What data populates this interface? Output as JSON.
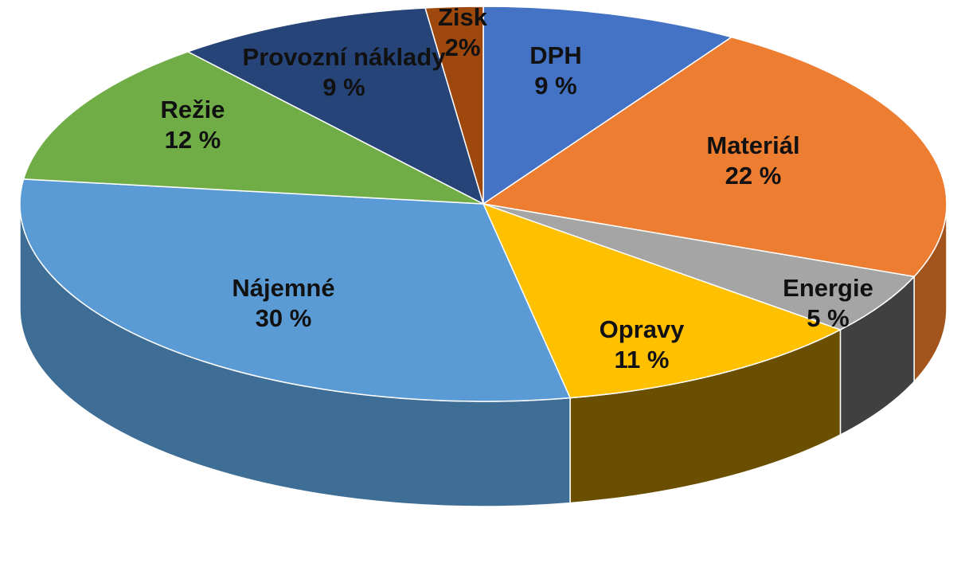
{
  "chart_data": {
    "type": "pie",
    "style": "3d",
    "start_angle_deg": 0,
    "direction": "clockwise",
    "legend": "none",
    "slices": [
      {
        "name": "DPH",
        "value": 9,
        "label": "9 %",
        "color": "#4472c4",
        "side_color": "#2f4f8a"
      },
      {
        "name": "Materiál",
        "value": 22,
        "label": "22 %",
        "color": "#ed7d31",
        "side_color": "#a3531c"
      },
      {
        "name": "Energie",
        "value": 5,
        "label": "5 %",
        "color": "#a5a5a5",
        "side_color": "#404040"
      },
      {
        "name": "Opravy",
        "value": 11,
        "label": "11 %",
        "color": "#ffc000",
        "side_color": "#6b4f00"
      },
      {
        "name": "Nájemné",
        "value": 30,
        "label": "30 %",
        "color": "#5b9bd5",
        "side_color": "#3e6d96"
      },
      {
        "name": "Režie",
        "value": 12,
        "label": "12 %",
        "color": "#70ad47",
        "side_color": "#4a7a2d"
      },
      {
        "name": "Provozní náklady",
        "value": 9,
        "label": "9 %",
        "color": "#264478",
        "side_color": "#182d50"
      },
      {
        "name": "Zisk",
        "value": 2,
        "label": "2%",
        "color": "#9e480e",
        "side_color": "#6a2f08"
      }
    ]
  }
}
